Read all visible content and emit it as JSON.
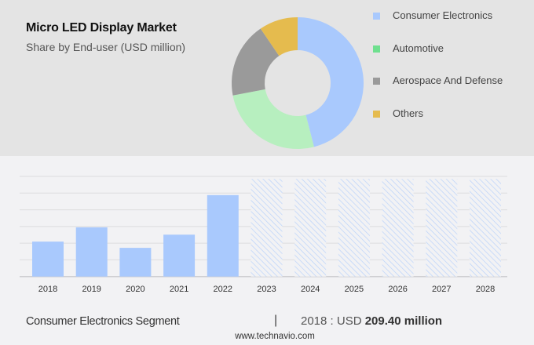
{
  "header": {
    "title": "Micro LED Display Market",
    "subtitle": "Share by End-user (USD million)"
  },
  "legend": [
    {
      "label": "Consumer Electronics",
      "color": "#a9c9fd"
    },
    {
      "label": "Automotive",
      "color": "#6fe08f"
    },
    {
      "label": "Aerospace And Defense",
      "color": "#9a9a9a"
    },
    {
      "label": "Others",
      "color": "#e5bb4e"
    }
  ],
  "chart_data": [
    {
      "type": "pie",
      "title": "Micro LED Display Market",
      "subtitle": "Share by End-user (USD million)",
      "donut": true,
      "categories": [
        "Consumer Electronics",
        "Automotive",
        "Aerospace And Defense",
        "Others"
      ],
      "values": [
        46,
        26,
        18.5,
        9.5
      ],
      "unit": "percent (approx.)",
      "colors": [
        "#a9c9fd",
        "#b7efbf",
        "#9a9a9a",
        "#e5bb4e"
      ],
      "legend_position": "right"
    },
    {
      "type": "bar",
      "title": "Consumer Electronics Segment",
      "categories": [
        "2018",
        "2019",
        "2020",
        "2021",
        "2022",
        "2023",
        "2024",
        "2025",
        "2026",
        "2027",
        "2028"
      ],
      "values": [
        209.4,
        295,
        172,
        251,
        488,
        null,
        null,
        null,
        null,
        null,
        null
      ],
      "forecast": [
        false,
        false,
        false,
        false,
        false,
        true,
        true,
        true,
        true,
        true,
        true
      ],
      "forecast_display_value": 585,
      "ylim": [
        0,
        600
      ],
      "ytick_step": 100,
      "grid": true,
      "xlabel": "",
      "ylabel": "",
      "bar_color": "#a9c9fd",
      "hatch_color": "#b9d2fb"
    }
  ],
  "footer": {
    "segment": "Consumer Electronics Segment",
    "separator": "|",
    "value_prefix": "2018 : USD",
    "value_bold": "209.40 million",
    "url": "www.technavio.com"
  }
}
